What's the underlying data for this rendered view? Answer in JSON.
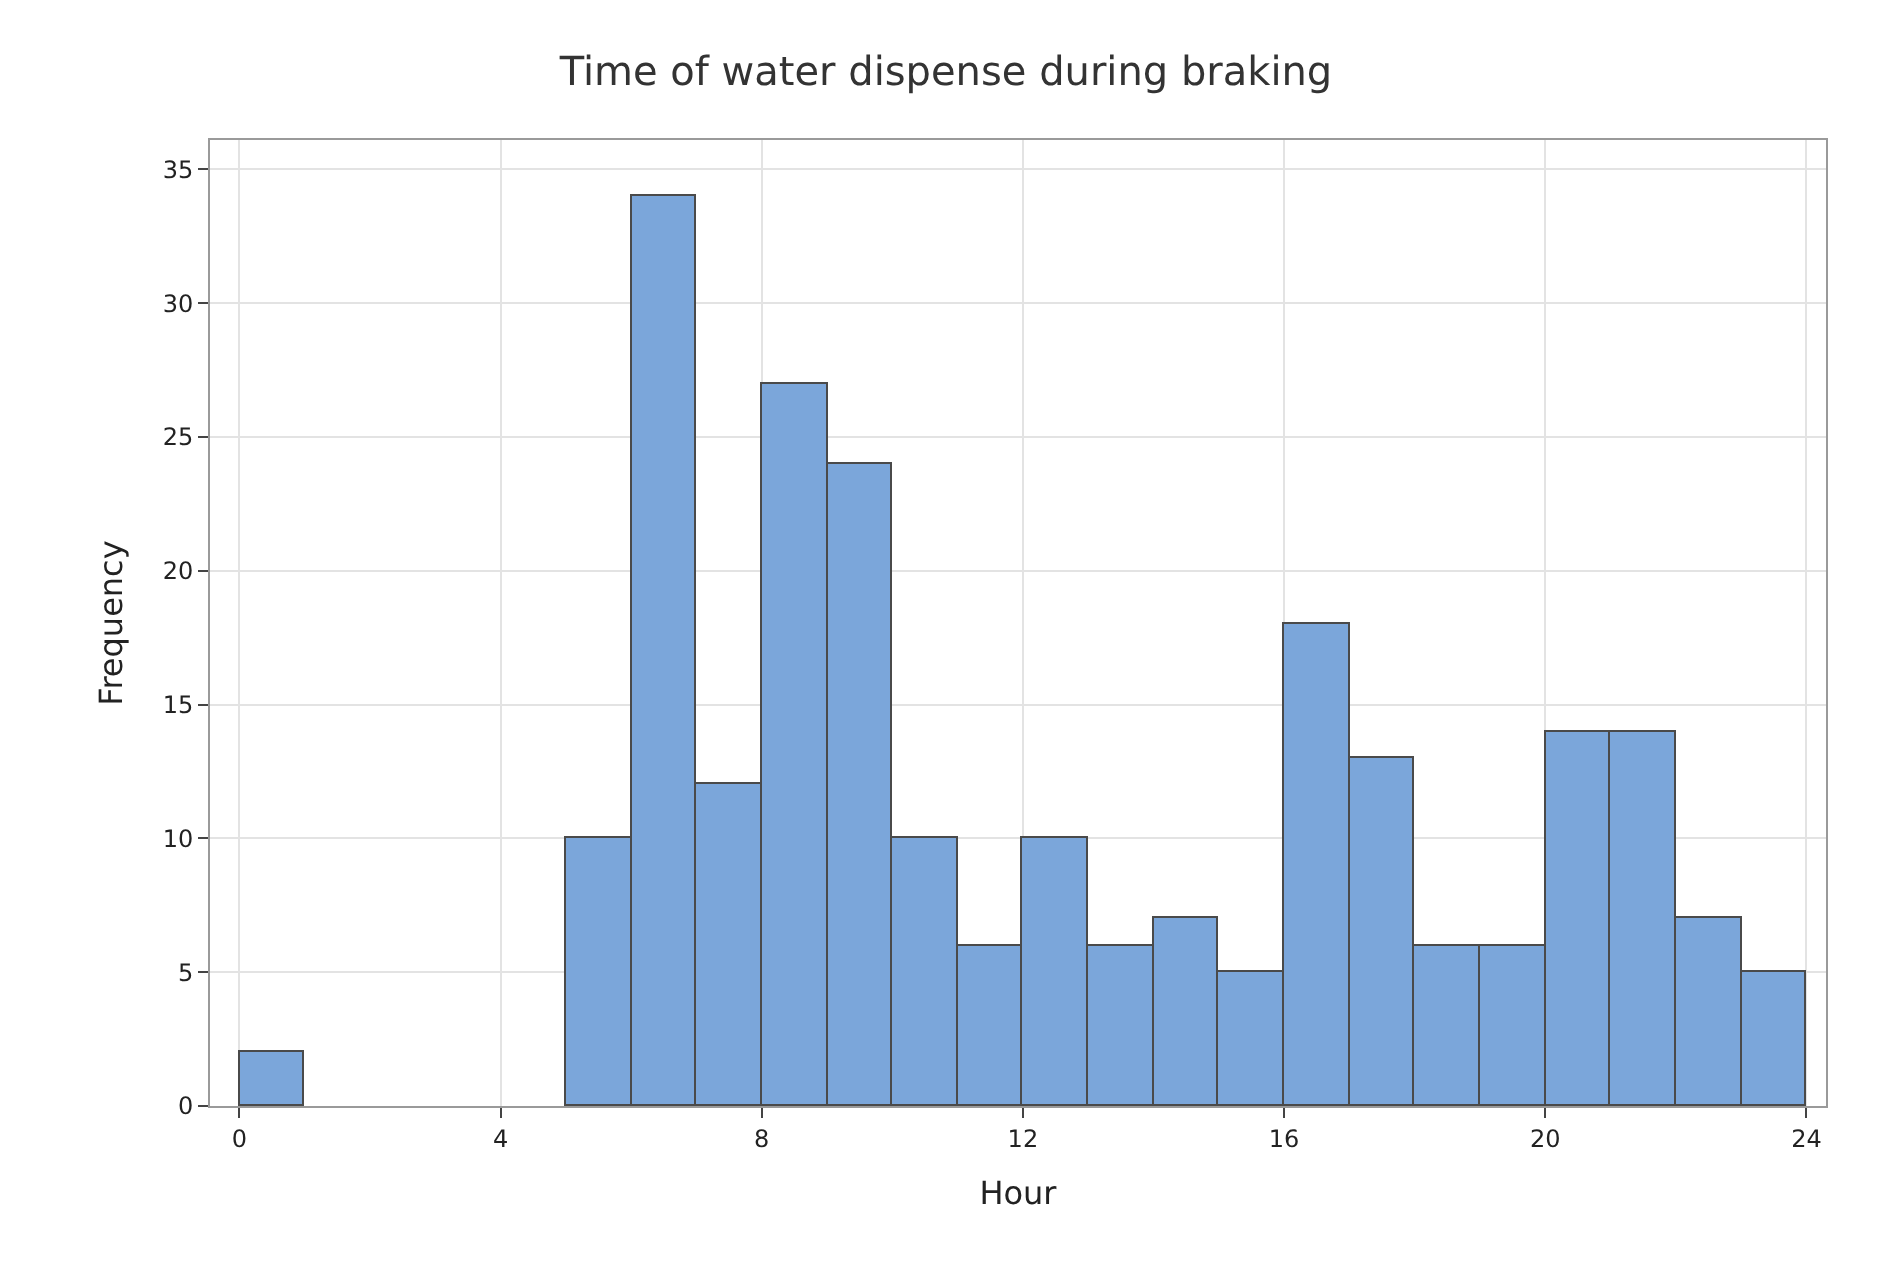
{
  "chart_data": {
    "type": "histogram",
    "title": "Time of water dispense during braking",
    "xlabel": "Hour",
    "ylabel": "Frequency",
    "bins": [
      0,
      1,
      2,
      3,
      4,
      5,
      6,
      7,
      8,
      9,
      10,
      11,
      12,
      13,
      14,
      15,
      16,
      17,
      18,
      19,
      20,
      21,
      22,
      23,
      24
    ],
    "values": [
      2,
      0,
      0,
      0,
      0,
      10,
      34,
      12,
      27,
      24,
      10,
      6,
      10,
      6,
      7,
      5,
      18,
      13,
      6,
      6,
      14,
      14,
      7,
      5
    ],
    "color": "#7ba6da",
    "xlim": [
      -0.45,
      24.3
    ],
    "xticks": [
      0,
      4,
      8,
      12,
      16,
      20,
      24
    ],
    "ylim": [
      0,
      36.1
    ],
    "yticks": [
      0,
      5,
      10,
      15,
      20,
      25,
      30,
      35
    ],
    "grid": true
  }
}
